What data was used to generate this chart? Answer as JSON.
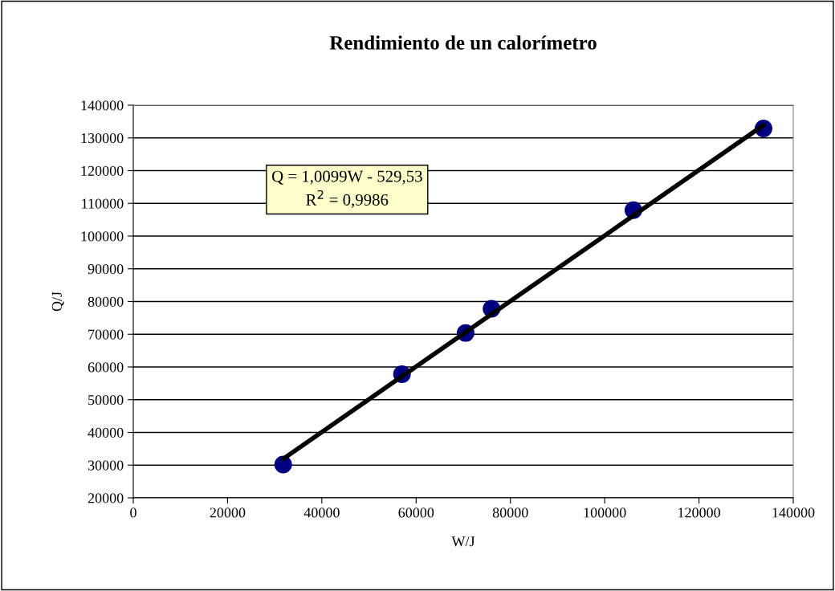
{
  "chart_data": {
    "type": "scatter",
    "title": "Rendimiento de un calorímetro",
    "xlabel": "W/J",
    "ylabel": "Q/J",
    "x": [
      31800,
      57000,
      70500,
      76000,
      106100,
      133700
    ],
    "series": [
      {
        "color": "#000080",
        "marker": "circle",
        "values": [
          30200,
          57800,
          70400,
          77800,
          107900,
          132900
        ]
      },
      {
        "type": "line",
        "color": "#000000",
        "marker": "none",
        "line_style": "solid",
        "x": [
          31800,
          133700
        ],
        "values": [
          31900,
          133900
        ]
      }
    ],
    "annotations": [
      "Q = 1,0099W - 529,53\nR$^{2}$ = 0,9986"
    ],
    "xlim": [
      0,
      140000
    ],
    "ylim": [
      20000,
      140000
    ],
    "xticks": [
      0,
      20000,
      40000,
      60000,
      80000,
      100000,
      120000,
      140000
    ],
    "yticks": [
      20000,
      30000,
      40000,
      50000,
      60000,
      70000,
      80000,
      90000,
      100000,
      110000,
      120000,
      130000,
      140000
    ],
    "grid": "y",
    "legend": false
  }
}
